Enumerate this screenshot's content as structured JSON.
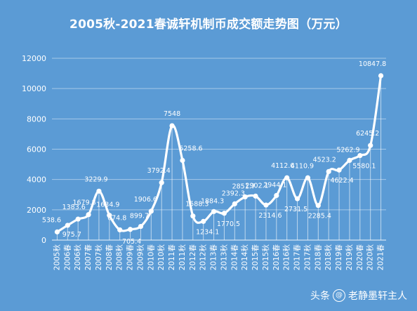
{
  "chart_data": {
    "type": "line",
    "title": "2005秋-2021春诚轩机制币成交额走势图（万元）",
    "ylim": [
      0,
      12000
    ],
    "y_ticks": [
      0,
      2000,
      4000,
      6000,
      8000,
      10000,
      12000
    ],
    "grid": true,
    "categories": [
      "2005秋",
      "2006春",
      "2006秋",
      "2007春",
      "2007秋",
      "2008春",
      "2008秋",
      "2009春",
      "2009秋",
      "2010春",
      "2010秋",
      "2011春",
      "2011秋",
      "2012春",
      "2012秋",
      "2013春",
      "2013秋",
      "2014春",
      "2014秋",
      "2015春",
      "2015秋",
      "2016春",
      "2016秋",
      "2017春",
      "2017秋",
      "2018春",
      "2018秋",
      "2019春",
      "2019秋",
      "2020春",
      "2020秋",
      "2021春"
    ],
    "series": [
      {
        "values": [
          538.6,
          975.7,
          1383.6,
          1679.8,
          3229.9,
          1634.9,
          674.8,
          705.4,
          899.7,
          1906.6,
          3792.4,
          7548,
          5258.6,
          1588.3,
          1234.1,
          1884.3,
          1770.5,
          2392.3,
          2851.7,
          2902.1,
          2314.6,
          2944.1,
          4112.6,
          2731.5,
          4110.9,
          2285.4,
          4523.2,
          4622.4,
          5262.9,
          5580.1,
          6245.2,
          10847.8
        ],
        "labels": [
          "538.6",
          "975.7",
          "1383.6",
          "1679.8",
          "3229.9",
          "1634.9",
          "674.8",
          "705.4",
          "899.7",
          "1906.6",
          "3792.4",
          "7548",
          "5258.6",
          "1588.3",
          "1234.1",
          "1884.3",
          "1770.5",
          "2392.3",
          "2851.7",
          "2902.1",
          "2314.6",
          "2944.1",
          "4112.6",
          "2731.5",
          "4110.9",
          "2285.4",
          "4523.2",
          "4622.4",
          "5262.9",
          "5580.1",
          "6245.2",
          "10847.8"
        ],
        "color": "#ffffff"
      }
    ]
  },
  "colors": {
    "background": "#5b9bd5",
    "line": "#ffffff"
  },
  "watermark": {
    "prefix": "头条",
    "at_icon": "at-icon",
    "account": "老静墨轩主人"
  }
}
